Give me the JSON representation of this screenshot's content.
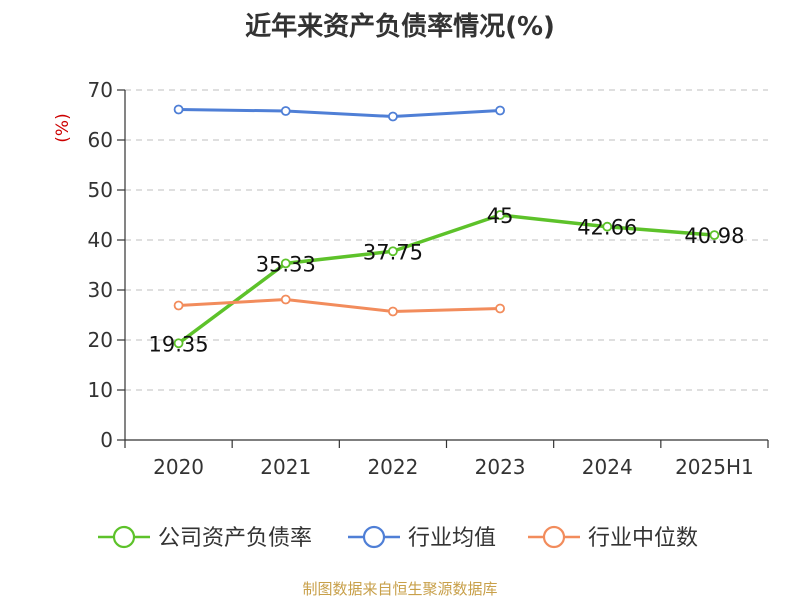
{
  "chart_data": {
    "type": "line",
    "title": "近年来资产负债率情况(%)",
    "ylabel": "(%)",
    "categories": [
      "2020",
      "2021",
      "2022",
      "2023",
      "2024",
      "2025H1"
    ],
    "ylim": [
      0,
      70
    ],
    "yticks": [
      0,
      10,
      20,
      30,
      40,
      50,
      60,
      70
    ],
    "grid": true,
    "legend": "bottom",
    "series": [
      {
        "name": "公司资产负债率",
        "color": "#5dc22a",
        "values": [
          19.35,
          35.33,
          37.75,
          45,
          42.66,
          40.98
        ],
        "labels": [
          "19.35",
          "35.33",
          "37.75",
          "45",
          "42.66",
          "40.98"
        ]
      },
      {
        "name": "行业均值",
        "color": "#4f7fd6",
        "values": [
          66.1,
          65.8,
          64.7,
          65.9,
          null,
          null
        ]
      },
      {
        "name": "行业中位数",
        "color": "#f28c5c",
        "values": [
          26.9,
          28.1,
          25.7,
          26.3,
          null,
          null
        ]
      }
    ]
  },
  "footer": {
    "source": "制图数据来自恒生聚源数据库"
  }
}
